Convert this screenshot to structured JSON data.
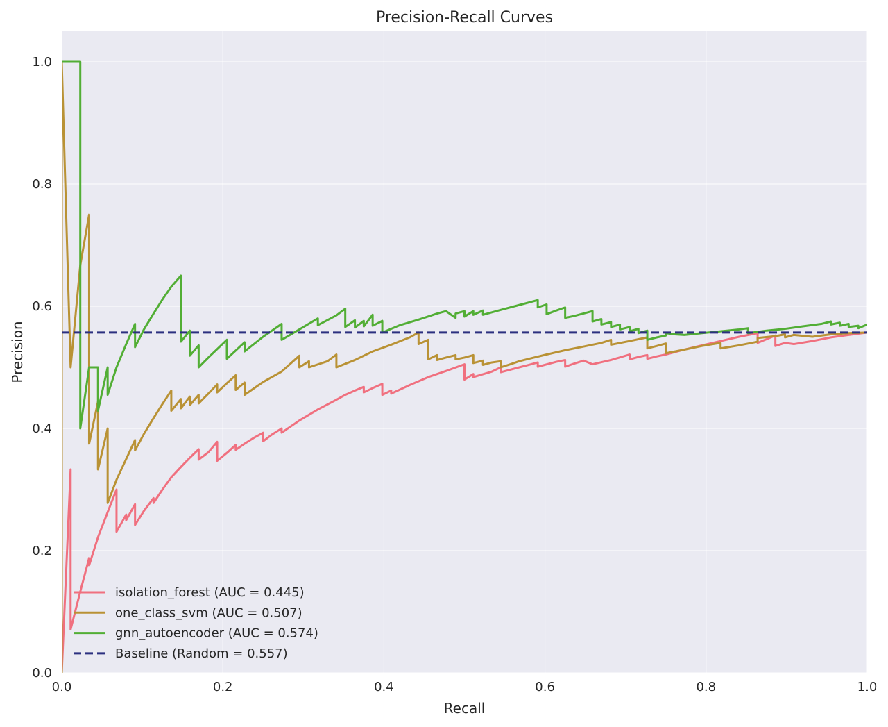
{
  "chart_data": {
    "type": "line",
    "title": "Precision-Recall Curves",
    "xlabel": "Recall",
    "ylabel": "Precision",
    "xlim": [
      0.0,
      1.0
    ],
    "ylim": [
      0.0,
      1.05
    ],
    "xticks": [
      "0.0",
      "0.2",
      "0.4",
      "0.6",
      "0.8",
      "1.0"
    ],
    "yticks": [
      "0.0",
      "0.2",
      "0.4",
      "0.6",
      "0.8",
      "1.0"
    ],
    "grid": true,
    "legend_position": "lower-left",
    "series": [
      {
        "name": "isolation_forest (AUC = 0.445)",
        "color": "#f0707f",
        "dash": false,
        "x": [
          0.0,
          0.011,
          0.011,
          0.023,
          0.034,
          0.034,
          0.045,
          0.057,
          0.068,
          0.068,
          0.08,
          0.08,
          0.091,
          0.091,
          0.102,
          0.114,
          0.114,
          0.125,
          0.136,
          0.148,
          0.159,
          0.17,
          0.17,
          0.182,
          0.193,
          0.193,
          0.205,
          0.216,
          0.216,
          0.227,
          0.239,
          0.25,
          0.25,
          0.261,
          0.273,
          0.273,
          0.295,
          0.318,
          0.341,
          0.352,
          0.364,
          0.375,
          0.375,
          0.386,
          0.398,
          0.398,
          0.409,
          0.409,
          0.432,
          0.455,
          0.477,
          0.5,
          0.5,
          0.511,
          0.511,
          0.534,
          0.545,
          0.545,
          0.568,
          0.58,
          0.591,
          0.591,
          0.614,
          0.625,
          0.625,
          0.636,
          0.648,
          0.659,
          0.682,
          0.705,
          0.705,
          0.716,
          0.727,
          0.727,
          0.739,
          0.75,
          0.773,
          0.795,
          0.818,
          0.841,
          0.864,
          0.864,
          0.886,
          0.886,
          0.898,
          0.909,
          0.932,
          0.955,
          0.977,
          1.0
        ],
        "y": [
          0.0,
          0.333,
          0.071,
          0.133,
          0.188,
          0.176,
          0.222,
          0.263,
          0.3,
          0.231,
          0.259,
          0.25,
          0.276,
          0.242,
          0.265,
          0.286,
          0.278,
          0.3,
          0.32,
          0.337,
          0.352,
          0.366,
          0.349,
          0.361,
          0.378,
          0.347,
          0.36,
          0.373,
          0.365,
          0.375,
          0.385,
          0.393,
          0.379,
          0.39,
          0.4,
          0.393,
          0.413,
          0.431,
          0.447,
          0.455,
          0.462,
          0.468,
          0.459,
          0.466,
          0.473,
          0.455,
          0.462,
          0.457,
          0.471,
          0.484,
          0.494,
          0.505,
          0.48,
          0.489,
          0.484,
          0.493,
          0.5,
          0.492,
          0.5,
          0.504,
          0.508,
          0.501,
          0.509,
          0.512,
          0.501,
          0.506,
          0.511,
          0.505,
          0.512,
          0.521,
          0.513,
          0.517,
          0.52,
          0.514,
          0.518,
          0.521,
          0.529,
          0.536,
          0.543,
          0.55,
          0.556,
          0.54,
          0.552,
          0.535,
          0.54,
          0.538,
          0.543,
          0.549,
          0.553,
          0.557
        ]
      },
      {
        "name": "one_class_svm (AUC = 0.507)",
        "color": "#b99235",
        "dash": false,
        "x": [
          0.0,
          0.0,
          0.011,
          0.023,
          0.034,
          0.034,
          0.045,
          0.045,
          0.057,
          0.057,
          0.068,
          0.08,
          0.091,
          0.091,
          0.102,
          0.114,
          0.125,
          0.136,
          0.136,
          0.148,
          0.148,
          0.159,
          0.159,
          0.17,
          0.17,
          0.182,
          0.193,
          0.193,
          0.205,
          0.216,
          0.216,
          0.227,
          0.227,
          0.25,
          0.273,
          0.295,
          0.295,
          0.307,
          0.307,
          0.33,
          0.341,
          0.341,
          0.364,
          0.386,
          0.409,
          0.432,
          0.443,
          0.443,
          0.455,
          0.455,
          0.466,
          0.466,
          0.477,
          0.489,
          0.489,
          0.5,
          0.511,
          0.511,
          0.523,
          0.523,
          0.534,
          0.545,
          0.545,
          0.557,
          0.568,
          0.58,
          0.602,
          0.625,
          0.648,
          0.67,
          0.682,
          0.682,
          0.705,
          0.727,
          0.727,
          0.739,
          0.75,
          0.75,
          0.773,
          0.795,
          0.818,
          0.818,
          0.841,
          0.864,
          0.864,
          0.886,
          0.898,
          0.898,
          0.909,
          0.932,
          0.955,
          0.977,
          1.0
        ],
        "y": [
          0.0,
          1.0,
          0.5,
          0.667,
          0.75,
          0.375,
          0.444,
          0.333,
          0.4,
          0.278,
          0.316,
          0.35,
          0.381,
          0.364,
          0.391,
          0.417,
          0.44,
          0.462,
          0.429,
          0.448,
          0.433,
          0.452,
          0.438,
          0.455,
          0.441,
          0.457,
          0.472,
          0.459,
          0.474,
          0.487,
          0.463,
          0.475,
          0.455,
          0.476,
          0.493,
          0.519,
          0.5,
          0.51,
          0.5,
          0.51,
          0.521,
          0.5,
          0.512,
          0.526,
          0.537,
          0.549,
          0.557,
          0.538,
          0.545,
          0.513,
          0.52,
          0.512,
          0.516,
          0.52,
          0.513,
          0.516,
          0.52,
          0.507,
          0.511,
          0.504,
          0.508,
          0.51,
          0.5,
          0.505,
          0.51,
          0.514,
          0.521,
          0.528,
          0.534,
          0.54,
          0.545,
          0.537,
          0.543,
          0.549,
          0.531,
          0.535,
          0.539,
          0.523,
          0.529,
          0.535,
          0.54,
          0.531,
          0.536,
          0.542,
          0.548,
          0.551,
          0.554,
          0.549,
          0.553,
          0.55,
          0.554,
          0.556,
          0.557
        ]
      },
      {
        "name": "gnn_autoencoder (AUC = 0.574)",
        "color": "#52ae35",
        "dash": false,
        "x": [
          0.0,
          0.023,
          0.023,
          0.034,
          0.045,
          0.045,
          0.057,
          0.057,
          0.068,
          0.08,
          0.091,
          0.091,
          0.102,
          0.114,
          0.125,
          0.136,
          0.148,
          0.148,
          0.159,
          0.159,
          0.17,
          0.17,
          0.182,
          0.205,
          0.205,
          0.227,
          0.227,
          0.25,
          0.273,
          0.273,
          0.295,
          0.318,
          0.318,
          0.341,
          0.352,
          0.352,
          0.364,
          0.364,
          0.375,
          0.375,
          0.386,
          0.386,
          0.398,
          0.398,
          0.42,
          0.443,
          0.466,
          0.477,
          0.489,
          0.489,
          0.5,
          0.5,
          0.511,
          0.511,
          0.523,
          0.523,
          0.545,
          0.568,
          0.591,
          0.591,
          0.602,
          0.602,
          0.614,
          0.625,
          0.625,
          0.636,
          0.659,
          0.659,
          0.67,
          0.67,
          0.682,
          0.682,
          0.693,
          0.693,
          0.705,
          0.705,
          0.716,
          0.716,
          0.727,
          0.727,
          0.739,
          0.75,
          0.75,
          0.761,
          0.773,
          0.795,
          0.818,
          0.841,
          0.852,
          0.852,
          0.875,
          0.898,
          0.92,
          0.943,
          0.955,
          0.955,
          0.966,
          0.966,
          0.977,
          0.977,
          0.989,
          0.989,
          1.0
        ],
        "y": [
          1.0,
          1.0,
          0.4,
          0.5,
          0.5,
          0.429,
          0.5,
          0.455,
          0.5,
          0.538,
          0.571,
          0.533,
          0.562,
          0.588,
          0.611,
          0.632,
          0.65,
          0.542,
          0.56,
          0.519,
          0.536,
          0.5,
          0.516,
          0.545,
          0.514,
          0.541,
          0.526,
          0.55,
          0.571,
          0.545,
          0.562,
          0.58,
          0.569,
          0.585,
          0.596,
          0.566,
          0.577,
          0.565,
          0.576,
          0.567,
          0.586,
          0.568,
          0.576,
          0.557,
          0.569,
          0.578,
          0.588,
          0.592,
          0.581,
          0.588,
          0.592,
          0.583,
          0.592,
          0.586,
          0.593,
          0.586,
          0.594,
          0.602,
          0.61,
          0.598,
          0.603,
          0.587,
          0.593,
          0.598,
          0.581,
          0.584,
          0.592,
          0.575,
          0.579,
          0.57,
          0.574,
          0.566,
          0.57,
          0.562,
          0.566,
          0.559,
          0.563,
          0.556,
          0.56,
          0.545,
          0.549,
          0.552,
          0.556,
          0.554,
          0.553,
          0.556,
          0.559,
          0.562,
          0.564,
          0.556,
          0.56,
          0.563,
          0.567,
          0.571,
          0.575,
          0.57,
          0.573,
          0.568,
          0.571,
          0.566,
          0.568,
          0.564,
          0.57
        ]
      },
      {
        "name": "Baseline (Random = 0.557)",
        "color": "#2c3080",
        "dash": true,
        "x": [
          0.0,
          1.0
        ],
        "y": [
          0.557,
          0.557
        ]
      }
    ]
  }
}
